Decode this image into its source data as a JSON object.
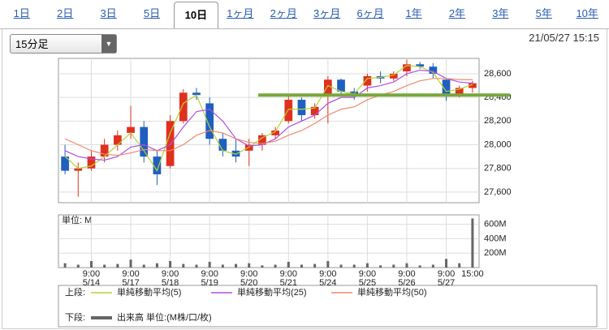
{
  "tabs": {
    "items": [
      "1日",
      "2日",
      "3日",
      "5日",
      "10日",
      "1ヶ月",
      "2ヶ月",
      "3ヶ月",
      "6ヶ月",
      "1年",
      "2年",
      "3年",
      "5年",
      "10年"
    ],
    "selected": 4
  },
  "interval": "15分足",
  "timestamp": "21/05/27 15:15",
  "legend": {
    "upper_label": "上段:",
    "lower_label": "下段:"
  },
  "chart_data": [
    {
      "type": "candlestick",
      "categories": [
        null,
        null,
        {
          "time": "9:00",
          "date": "5/14"
        },
        null,
        null,
        {
          "time": "9:00",
          "date": "5/17"
        },
        null,
        null,
        {
          "time": "9:00",
          "date": "5/18"
        },
        null,
        null,
        {
          "time": "9:00",
          "date": "5/19"
        },
        null,
        null,
        {
          "time": "9:00",
          "date": "5/20"
        },
        null,
        null,
        {
          "time": "9:00",
          "date": "5/21"
        },
        null,
        null,
        {
          "time": "9:00",
          "date": "5/24"
        },
        null,
        null,
        {
          "time": "9:00",
          "date": "5/25"
        },
        null,
        null,
        {
          "time": "9:00",
          "date": "5/26"
        },
        null,
        null,
        {
          "time": "9:00",
          "date": "5/27"
        },
        null,
        {
          "time": "15:00"
        }
      ],
      "open": [
        27900,
        27780,
        27800,
        27900,
        28000,
        28100,
        28150,
        27900,
        27820,
        28200,
        28440,
        28350,
        28050,
        27950,
        27950,
        28000,
        28080,
        28200,
        28380,
        28250,
        28420,
        28550,
        28450,
        28500,
        28580,
        28560,
        28620,
        28680,
        28660,
        28550,
        28420,
        28480
      ],
      "high": [
        28000,
        27850,
        27950,
        28050,
        28120,
        28330,
        28200,
        27950,
        28250,
        28470,
        28480,
        28400,
        28100,
        28050,
        28050,
        28100,
        28150,
        28420,
        28400,
        28350,
        28580,
        28560,
        28480,
        28600,
        28620,
        28620,
        28720,
        28700,
        28690,
        28560,
        28500,
        28540
      ],
      "low": [
        27750,
        27560,
        27780,
        27850,
        27950,
        28050,
        27850,
        27660,
        27800,
        28180,
        28380,
        28000,
        27900,
        27850,
        27820,
        27950,
        28050,
        28180,
        28200,
        28220,
        28180,
        28420,
        28380,
        28450,
        28520,
        28540,
        28580,
        28640,
        28560,
        28370,
        28400,
        28440
      ],
      "close": [
        27780,
        27800,
        27900,
        28000,
        28080,
        28150,
        27900,
        27750,
        28200,
        28440,
        28420,
        28050,
        27950,
        27900,
        28000,
        28080,
        28120,
        28380,
        28250,
        28320,
        28550,
        28450,
        28420,
        28580,
        28560,
        28600,
        28680,
        28660,
        28600,
        28420,
        28480,
        28520
      ],
      "up_color": "#e0301e",
      "down_color": "#1f5fbf",
      "series": [
        {
          "name": "単純移動平均(5)",
          "color": "#b5d334",
          "values": [
            27900,
            27800,
            27820,
            27900,
            28000,
            28100,
            27950,
            27780,
            28100,
            28350,
            28420,
            28150,
            27950,
            27920,
            27980,
            28060,
            28110,
            28300,
            28300,
            28310,
            28500,
            28450,
            28430,
            28560,
            28570,
            28590,
            28670,
            28660,
            28610,
            28450,
            28470,
            28510
          ]
        },
        {
          "name": "単純移動平均(25)",
          "color": "#b04fe0",
          "values": [
            27950,
            27900,
            27880,
            27870,
            27900,
            27980,
            28000,
            27950,
            28000,
            28150,
            28280,
            28300,
            28200,
            28050,
            27990,
            28000,
            28050,
            28150,
            28200,
            28250,
            28350,
            28400,
            28400,
            28480,
            28500,
            28530,
            28600,
            28630,
            28620,
            28560,
            28530,
            28520
          ]
        },
        {
          "name": "単純移動平均(50)",
          "color": "#ee8a6e",
          "values": [
            28050,
            28000,
            27950,
            27920,
            27910,
            27930,
            27960,
            27950,
            27950,
            28000,
            28080,
            28120,
            28100,
            28050,
            28020,
            28010,
            28030,
            28080,
            28120,
            28180,
            28250,
            28300,
            28320,
            28380,
            28420,
            28450,
            28500,
            28540,
            28560,
            28560,
            28550,
            28550
          ]
        }
      ],
      "hlines": [
        {
          "value": 28420,
          "color": "#78a83a"
        }
      ],
      "ylim": [
        27510,
        28730
      ],
      "yticks": [
        {
          "value": 27600,
          "label": "27,600"
        },
        {
          "value": 27800,
          "label": "27,800"
        },
        {
          "value": 28000,
          "label": "28,000"
        },
        {
          "value": 28200,
          "label": "28,200"
        },
        {
          "value": 28400,
          "label": "28,400"
        },
        {
          "value": 28600,
          "label": "28,600"
        }
      ],
      "grid": true
    },
    {
      "type": "bar",
      "unit_label": "単位: M",
      "series": [
        {
          "name": "出来高 単位:(M株/口/枚)",
          "color": "#666666",
          "values": [
            60,
            40,
            90,
            40,
            50,
            110,
            40,
            60,
            90,
            50,
            40,
            80,
            40,
            50,
            60,
            30,
            40,
            80,
            40,
            50,
            90,
            40,
            40,
            60,
            30,
            40,
            60,
            30,
            40,
            120,
            60,
            680
          ]
        }
      ],
      "ylim": [
        0,
        730
      ],
      "yticks": [
        {
          "value": 200,
          "label": "200M"
        },
        {
          "value": 400,
          "label": "400M"
        },
        {
          "value": 600,
          "label": "600M"
        }
      ],
      "grid": true
    }
  ]
}
